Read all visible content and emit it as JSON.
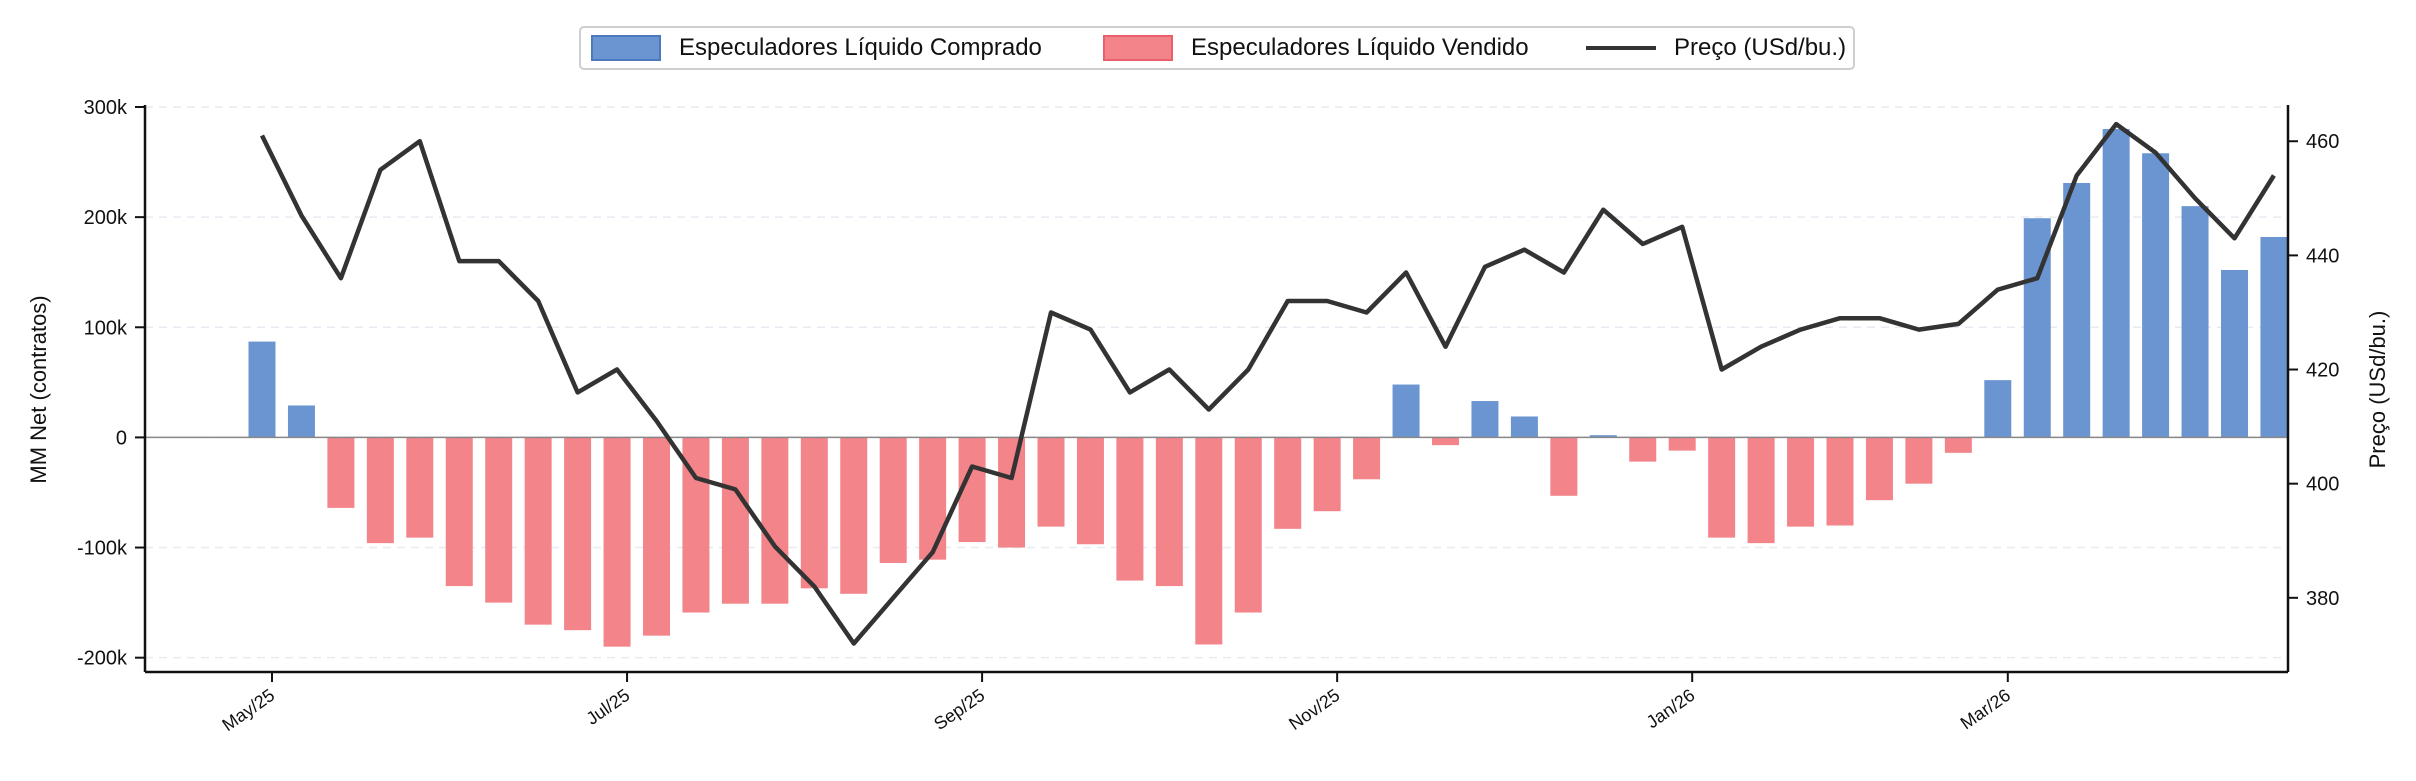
{
  "chart_data": {
    "type": "bar+line",
    "x_tick_labels": [
      "May/25",
      "Jul/25",
      "Sep/25",
      "Nov/25",
      "Jan/26",
      "Mar/26"
    ],
    "ylabel": "MM Net (contratos)",
    "y2label": "Preço (USd/bu.)",
    "ylim": [
      -213000,
      300000
    ],
    "y_ticks": [
      300000,
      200000,
      100000,
      0,
      -100000,
      -200000
    ],
    "y_tick_labels": [
      "300k",
      "200k",
      "100k",
      "0",
      "-100k",
      "-200k"
    ],
    "y2lim": [
      367,
      466
    ],
    "y2_ticks": [
      460,
      440,
      420,
      400,
      380
    ],
    "y2_tick_labels": [
      "460",
      "440",
      "420",
      "400",
      "380"
    ],
    "grid": "horizontal dashed",
    "legend_placement": "top-center",
    "legend": [
      {
        "label": "Especuladores Líquido Comprado",
        "kind": "bar",
        "color": "#6a95d1"
      },
      {
        "label": "Especuladores Líquido Vendido",
        "kind": "bar",
        "color": "#f2848a"
      },
      {
        "label": "Preço (USd/bu.)",
        "kind": "line",
        "color": "#333333"
      }
    ],
    "colors": {
      "long": "#6a95d1",
      "short": "#f2848a",
      "price": "#333333"
    },
    "series": [
      {
        "name": "Especuladores Líquido Comprado / Vendido",
        "values": [
          87000,
          29000,
          -64000,
          -96000,
          -91000,
          -135000,
          -150000,
          -170000,
          -175000,
          -190000,
          -180000,
          -159000,
          -151000,
          -151000,
          -137000,
          -142000,
          -114000,
          -111000,
          -95000,
          -100000,
          -81000,
          -97000,
          -130000,
          -135000,
          -188000,
          -159000,
          -83000,
          -67000,
          -38000,
          48000,
          -7000,
          33000,
          19000,
          -53000,
          2000,
          -22000,
          -12000,
          -91000,
          -96000,
          -81000,
          -80000,
          -57000,
          -42000,
          -14000,
          52000,
          199000,
          231000,
          280000,
          258000,
          210000,
          152000,
          182000
        ]
      },
      {
        "name": "Preço (USd/bu.)",
        "values": [
          461,
          447,
          436,
          455,
          460,
          439,
          439,
          432,
          416,
          420,
          411,
          401,
          399,
          389,
          382,
          372,
          380,
          388,
          403,
          401,
          430,
          427,
          416,
          420,
          413,
          420,
          432,
          432,
          430,
          437,
          424,
          438,
          441,
          437,
          448,
          442,
          445,
          420,
          424,
          427,
          429,
          429,
          427,
          428,
          434,
          436,
          454,
          463,
          458,
          450,
          443,
          454
        ]
      }
    ]
  }
}
